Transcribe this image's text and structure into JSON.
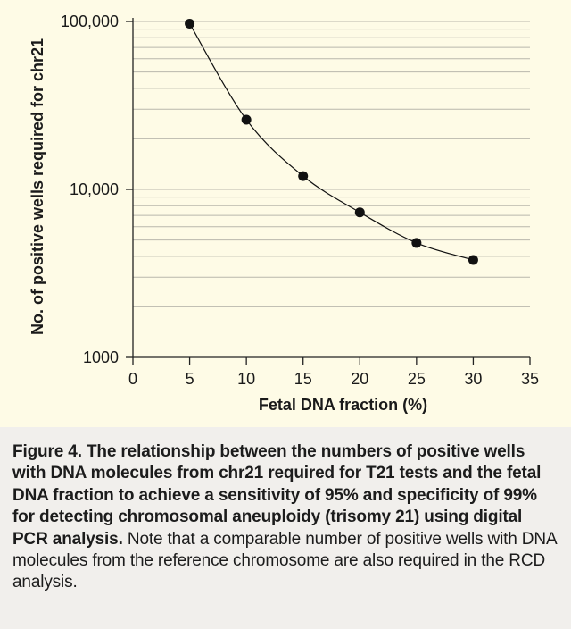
{
  "chart_data": {
    "type": "line",
    "title": "",
    "xlabel": "Fetal DNA fraction (%)",
    "ylabel": "No. of positive wells required for chr21",
    "xlim": [
      0,
      35
    ],
    "ylim": [
      1000,
      100000
    ],
    "yscale": "log",
    "x_ticks": [
      0,
      5,
      10,
      15,
      20,
      25,
      30,
      35
    ],
    "x_tick_labels": [
      "0",
      "5",
      "10",
      "15",
      "20",
      "25",
      "30",
      "35"
    ],
    "y_ticks": [
      1000,
      10000,
      100000
    ],
    "y_tick_labels": [
      "1000",
      "10,000",
      "100,000"
    ],
    "grid": true,
    "series": [
      {
        "name": "Positive wells required",
        "x": [
          5,
          10,
          15,
          20,
          25,
          30
        ],
        "y": [
          97000,
          26000,
          12000,
          7300,
          4800,
          3800
        ]
      }
    ]
  },
  "caption": {
    "bold": "Figure 4. The relationship between the numbers of positive wells with DNA molecules from chr21 required for T21 tests and the fetal DNA fraction to achieve a sensitivity of 95% and specificity of 99% for detecting chromosomal aneuploidy (trisomy 21) using digital PCR analysis.",
    "normal": "Note that a comparable number of positive wells with DNA molecules from the reference chromosome are also required in the RCD analysis."
  },
  "colors": {
    "chart_background": "#fefbe6",
    "caption_background": "#f1efec",
    "grid": "#b9b7ac",
    "axis": "#222222",
    "marker": "#111111"
  }
}
